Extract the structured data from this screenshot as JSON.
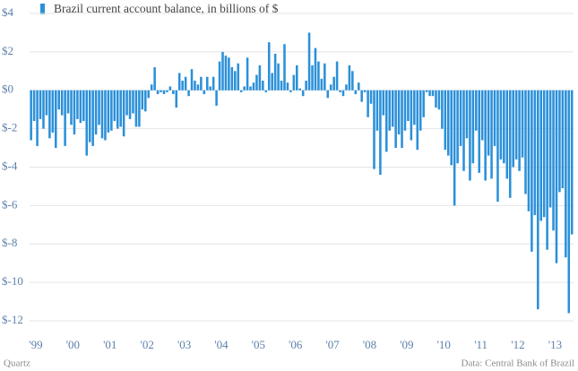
{
  "chart_data": {
    "type": "bar",
    "title": "Brazil current account balance, in billions of $",
    "source": "Data: Central Bank of Brazil",
    "credit": "Quartz",
    "color": "#2b90d9",
    "grid": true,
    "categories": [
      "'99",
      null,
      null,
      null,
      null,
      null,
      null,
      null,
      null,
      null,
      null,
      null,
      "'00",
      null,
      null,
      null,
      null,
      null,
      null,
      null,
      null,
      null,
      null,
      null,
      "'01",
      null,
      null,
      null,
      null,
      null,
      null,
      null,
      null,
      null,
      null,
      null,
      "'02",
      null,
      null,
      null,
      null,
      null,
      null,
      null,
      null,
      null,
      null,
      null,
      "'03",
      null,
      null,
      null,
      null,
      null,
      null,
      null,
      null,
      null,
      null,
      null,
      "'04",
      null,
      null,
      null,
      null,
      null,
      null,
      null,
      null,
      null,
      null,
      null,
      "'05",
      null,
      null,
      null,
      null,
      null,
      null,
      null,
      null,
      null,
      null,
      null,
      "'06",
      null,
      null,
      null,
      null,
      null,
      null,
      null,
      null,
      null,
      null,
      null,
      "'07",
      null,
      null,
      null,
      null,
      null,
      null,
      null,
      null,
      null,
      null,
      null,
      "'08",
      null,
      null,
      null,
      null,
      null,
      null,
      null,
      null,
      null,
      null,
      null,
      "'09",
      null,
      null,
      null,
      null,
      null,
      null,
      null,
      null,
      null,
      null,
      null,
      "'10",
      null,
      null,
      null,
      null,
      null,
      null,
      null,
      null,
      null,
      null,
      null,
      "'11",
      null,
      null,
      null,
      null,
      null,
      null,
      null,
      null,
      null,
      null,
      null,
      "'12",
      null,
      null,
      null,
      null,
      null,
      null,
      null,
      null,
      null,
      null,
      null,
      "'13",
      null,
      null,
      null,
      null,
      null,
      null,
      null
    ],
    "values": [
      -2.6,
      -1.6,
      -2.9,
      -1.5,
      -2.0,
      -1.3,
      -2.5,
      -2.2,
      -3.0,
      -1.0,
      -1.3,
      -2.9,
      -1.2,
      -1.8,
      -2.3,
      -1.5,
      -1.7,
      -1.6,
      -3.4,
      -2.7,
      -2.9,
      -2.3,
      -1.8,
      -2.5,
      -2.6,
      -2.2,
      -2.1,
      -1.6,
      -2.0,
      -1.9,
      -2.4,
      -1.3,
      -1.5,
      -1.2,
      -1.9,
      -1.9,
      -1.0,
      -1.1,
      -0.4,
      0.3,
      1.2,
      -0.2,
      -0.1,
      -0.2,
      -0.1,
      0.2,
      -0.2,
      -0.9,
      0.9,
      0.5,
      0.7,
      -0.3,
      1.1,
      0.5,
      0.3,
      0.7,
      -0.2,
      0.7,
      0.2,
      0.7,
      -0.8,
      1.5,
      2.0,
      1.8,
      1.7,
      1.2,
      1.0,
      1.4,
      -0.1,
      0.2,
      1.7,
      0.2,
      0.4,
      0.8,
      1.3,
      0.5,
      -0.1,
      2.5,
      0.9,
      1.9,
      1.4,
      0.5,
      2.4,
      0.4,
      -0.1,
      0.8,
      1.3,
      0.1,
      -0.3,
      0.5,
      3.0,
      1.3,
      2.2,
      1.5,
      0.6,
      1.4,
      -0.4,
      0.3,
      0.7,
      1.5,
      -0.1,
      -0.3,
      0.3,
      1.3,
      1.0,
      -0.2,
      0.4,
      -0.6,
      -0.1,
      -1.4,
      -0.7,
      -4.1,
      -2.1,
      -4.4,
      -1.3,
      -3.2,
      -2.1,
      -1.9,
      -3.0,
      -2.3,
      -3.0,
      -2.1,
      -1.6,
      -2.6,
      -1.8,
      -3.1,
      -2.1,
      -1.4,
      -0.1,
      -0.3,
      -0.3,
      -0.9,
      -1.0,
      -2.0,
      -3.1,
      -3.4,
      -3.9,
      -6.0,
      -3.8,
      -2.9,
      -4.2,
      -2.5,
      -4.7,
      -3.8,
      -2.1,
      -4.3,
      -2.6,
      -4.7,
      -3.4,
      -4.6,
      -2.9,
      -5.8,
      -3.6,
      -3.8,
      -4.6,
      -5.6,
      -4.0,
      -3.6,
      -4.2,
      -3.5,
      -5.4,
      -6.3,
      -8.4,
      -6.5,
      -11.4,
      -6.8,
      -6.6,
      -8.3,
      -6.1,
      -7.3,
      -9.0,
      -5.3,
      -5.1,
      -8.7,
      -11.6,
      -7.5
    ],
    "ylim": [
      -12,
      4
    ],
    "yticks": [
      {
        "value": 4,
        "label": "$4"
      },
      {
        "value": 2,
        "label": "$2"
      },
      {
        "value": 0,
        "label": "$0"
      },
      {
        "value": -2,
        "label": "$-2"
      },
      {
        "value": -4,
        "label": "$-4"
      },
      {
        "value": -6,
        "label": "$-6"
      },
      {
        "value": -8,
        "label": "$-8"
      },
      {
        "value": -10,
        "label": "$-10"
      },
      {
        "value": -12,
        "label": "$-12"
      }
    ]
  }
}
